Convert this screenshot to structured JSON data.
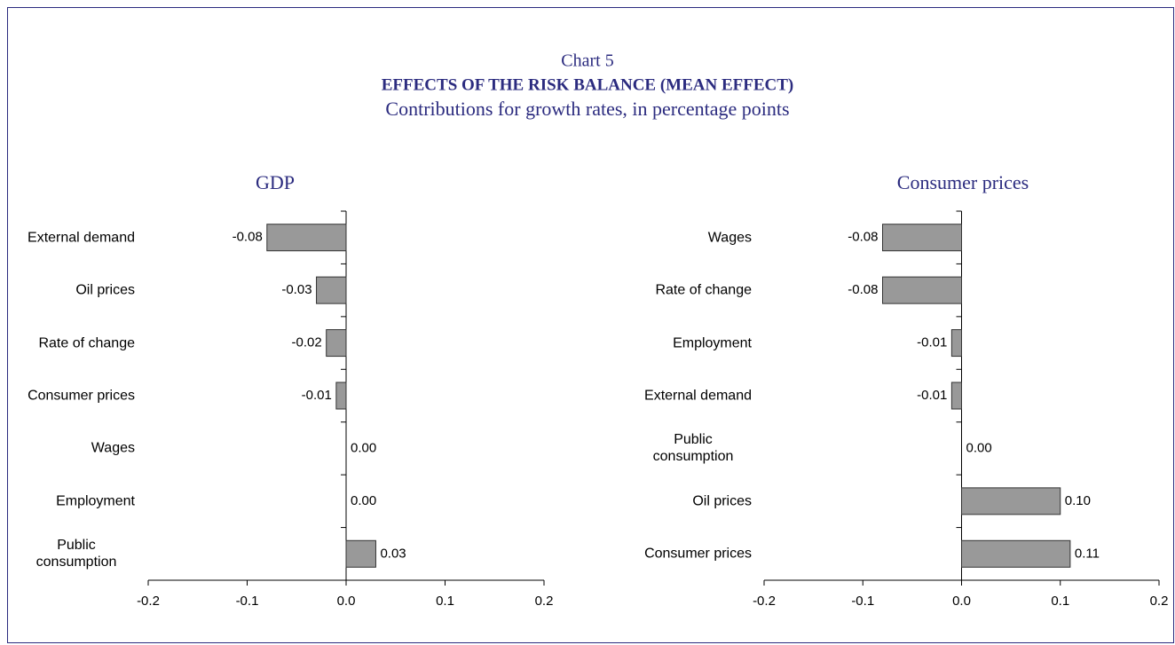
{
  "header": {
    "chart_number": "Chart 5",
    "title": "EFFECTS OF THE RISK BALANCE (MEAN EFFECT)",
    "subtitle": "Contributions for growth rates, in percentage points"
  },
  "chart_data": [
    {
      "type": "bar",
      "orientation": "horizontal",
      "title": "GDP",
      "categories": [
        "External demand",
        "Oil prices",
        "Rate of change",
        "Consumer prices",
        "Wages",
        "Employment",
        "Public consumption"
      ],
      "values": [
        -0.08,
        -0.03,
        -0.02,
        -0.01,
        0,
        0,
        0.03
      ],
      "value_labels": [
        "-0.08",
        "-0.03",
        "-0.02",
        "-0.01",
        "0.00",
        "0.00",
        "0.03"
      ],
      "color": "#999999",
      "xlim": [
        -0.2,
        0.2
      ],
      "xticks": [
        -0.2,
        -0.1,
        {
          "value": 0,
          "label": "0.0"
        },
        0.1,
        0.2
      ]
    },
    {
      "type": "bar",
      "orientation": "horizontal",
      "title": "Consumer prices",
      "categories": [
        "Wages",
        "Rate of change",
        "Employment",
        "External demand",
        "Public consumption",
        "Oil prices",
        "Consumer prices"
      ],
      "values": [
        -0.08,
        -0.08,
        -0.01,
        -0.01,
        0,
        0.1,
        0.11
      ],
      "value_labels": [
        "-0.08",
        "-0.08",
        "-0.01",
        "-0.01",
        "0.00",
        "0.10",
        "0.11"
      ],
      "color": "#999999",
      "xlim": [
        -0.2,
        0.2
      ],
      "xticks": [
        -0.2,
        -0.1,
        {
          "value": 0,
          "label": "0.0"
        },
        0.1,
        0.2
      ]
    }
  ]
}
